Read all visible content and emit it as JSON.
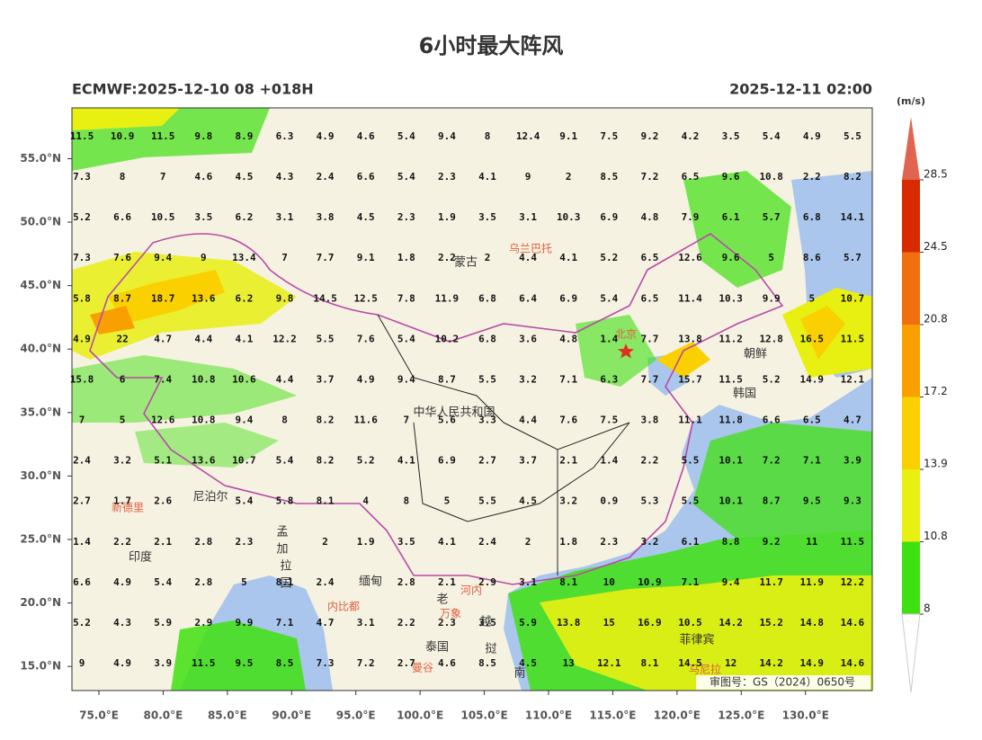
{
  "header": {
    "title": "6小时最大阵风",
    "model_run": "ECMWF:2025-12-10 08 +018H",
    "valid_time": "2025-12-11 02:00"
  },
  "map": {
    "xlim": [
      72.9,
      135.2
    ],
    "ylim": [
      13.1,
      59
    ],
    "xticks": [
      {
        "value": 75,
        "label": "75.0°E"
      },
      {
        "value": 80,
        "label": "80.0°E"
      },
      {
        "value": 85,
        "label": "85.0°E"
      },
      {
        "value": 90,
        "label": "90.0°E"
      },
      {
        "value": 95,
        "label": "95.0°E"
      },
      {
        "value": 100,
        "label": "100.0°E"
      },
      {
        "value": 105,
        "label": "105.0°E"
      },
      {
        "value": 110,
        "label": "110.0°E"
      },
      {
        "value": 115,
        "label": "115.0°E"
      },
      {
        "value": 120,
        "label": "120.0°E"
      },
      {
        "value": 125,
        "label": "125.0°E"
      },
      {
        "value": 130,
        "label": "130.0°E"
      }
    ],
    "yticks": [
      {
        "value": 15,
        "label": "15.0°N"
      },
      {
        "value": 20,
        "label": "20.0°N"
      },
      {
        "value": 25,
        "label": "25.0°N"
      },
      {
        "value": 30,
        "label": "30.0°N"
      },
      {
        "value": 35,
        "label": "35.0°N"
      },
      {
        "value": 40,
        "label": "40.0°N"
      },
      {
        "value": 45,
        "label": "45.0°N"
      },
      {
        "value": 50,
        "label": "50.0°N"
      },
      {
        "value": 55,
        "label": "55.0°N"
      }
    ],
    "places": [
      "乌兰巴托",
      "蒙古",
      "北京",
      "朝鲜",
      "韩国",
      "中华人民共和国",
      "尼泊尔",
      "新德里",
      "印度",
      "孟",
      "加",
      "拉",
      "国",
      "缅甸",
      "内比都",
      "老",
      "挝",
      "河内",
      "万象",
      "泰国",
      "曼谷",
      "越",
      "南",
      "菲律宾",
      "马尼拉"
    ],
    "credit": "审图号：GS（2024）0650号"
  },
  "grid": {
    "values": [
      [
        11.5,
        10.9,
        11.5,
        9.8,
        8.9,
        6.3,
        4.9,
        4.6,
        5.4,
        9.4,
        8.0,
        12.4,
        9.1,
        7.5,
        9.2,
        4.2,
        3.5,
        5.4,
        4.9,
        5.5
      ],
      [
        7.3,
        8.0,
        7.0,
        4.6,
        4.5,
        4.3,
        2.4,
        6.6,
        5.4,
        2.3,
        4.1,
        9.0,
        2.0,
        8.5,
        7.2,
        6.5,
        9.6,
        10.8,
        2.2,
        8.2
      ],
      [
        5.2,
        6.6,
        10.5,
        3.5,
        6.2,
        3.1,
        3.8,
        4.5,
        2.3,
        1.9,
        3.5,
        3.1,
        10.3,
        6.9,
        4.8,
        7.9,
        6.1,
        5.7,
        6.8,
        14.1
      ],
      [
        7.3,
        7.6,
        9.4,
        9.0,
        13.4,
        7.0,
        7.7,
        9.1,
        1.8,
        2.2,
        2.0,
        4.4,
        4.1,
        5.2,
        6.5,
        12.6,
        9.6,
        5.0,
        8.6,
        5.7
      ],
      [
        5.8,
        8.7,
        18.7,
        13.6,
        6.2,
        9.8,
        14.5,
        12.5,
        7.8,
        11.9,
        6.8,
        6.4,
        6.9,
        5.4,
        6.5,
        11.4,
        10.3,
        9.9,
        5.0,
        10.7
      ],
      [
        4.9,
        22.0,
        4.7,
        4.4,
        4.1,
        12.2,
        5.5,
        7.6,
        5.4,
        10.2,
        6.8,
        3.6,
        4.8,
        1.4,
        7.7,
        13.8,
        11.2,
        12.8,
        16.5,
        11.5
      ],
      [
        15.8,
        6.0,
        7.4,
        10.8,
        10.6,
        4.4,
        3.7,
        4.9,
        9.4,
        8.7,
        5.5,
        3.2,
        7.1,
        6.3,
        7.7,
        15.7,
        11.5,
        5.2,
        14.9,
        12.1
      ],
      [
        7.0,
        5.0,
        12.6,
        10.8,
        9.4,
        8.0,
        8.2,
        11.6,
        7.0,
        5.6,
        3.3,
        4.4,
        7.6,
        7.5,
        3.8,
        11.1,
        11.8,
        6.6,
        6.5,
        4.7
      ],
      [
        2.4,
        3.2,
        5.1,
        13.6,
        10.7,
        5.4,
        8.2,
        5.2,
        4.1,
        6.9,
        2.7,
        3.7,
        2.1,
        1.4,
        2.2,
        5.5,
        10.1,
        7.2,
        7.1,
        3.9
      ],
      [
        2.7,
        1.7,
        2.6,
        null,
        5.4,
        5.8,
        8.1,
        4.0,
        8.0,
        5.0,
        5.5,
        4.5,
        3.2,
        0.9,
        5.3,
        5.5,
        10.1,
        8.7,
        9.5,
        9.3
      ],
      [
        1.4,
        2.2,
        2.1,
        2.8,
        2.3,
        null,
        2.0,
        1.9,
        3.5,
        4.1,
        2.4,
        2.0,
        1.8,
        2.3,
        3.2,
        6.1,
        8.8,
        9.2,
        11.0,
        11.5
      ],
      [
        6.6,
        4.9,
        5.4,
        2.8,
        5.0,
        8.1,
        2.4,
        null,
        2.8,
        2.1,
        2.9,
        3.1,
        8.1,
        10.0,
        10.9,
        7.1,
        9.4,
        11.7,
        11.9,
        12.2
      ],
      [
        5.2,
        4.3,
        5.9,
        2.9,
        9.9,
        7.1,
        4.7,
        3.1,
        2.2,
        2.3,
        3.5,
        5.9,
        13.8,
        15.0,
        16.9,
        10.5,
        14.2,
        15.2,
        14.8,
        14.6
      ],
      [
        9.0,
        4.9,
        3.9,
        11.5,
        9.5,
        8.5,
        7.3,
        7.2,
        2.7,
        4.6,
        8.5,
        4.5,
        13.0,
        12.1,
        8.1,
        14.5,
        12.0,
        14.2,
        14.9,
        14.6
      ]
    ]
  },
  "colorbar": {
    "unit": "(m/s)",
    "levels": [
      8,
      10.8,
      13.9,
      17.2,
      20.8,
      24.5,
      28.5
    ],
    "colors": [
      "#3fe010",
      "#e8f012",
      "#fbd000",
      "#f8a000",
      "#f07010",
      "#d82a00"
    ],
    "over_color": "#e06450"
  }
}
